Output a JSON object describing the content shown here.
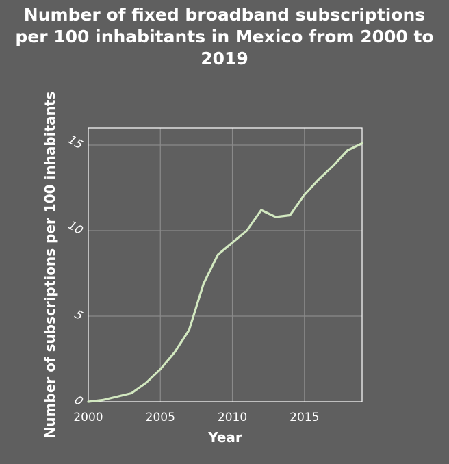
{
  "chart_data": {
    "type": "line",
    "title_lines": [
      "Number of fixed broadband subscriptions",
      "per 100 inhabitants in Mexico from 2000 to",
      "2019"
    ],
    "xlabel": "Year",
    "ylabel": "Number of subscriptions per 100 inhabitants",
    "x": [
      2000,
      2001,
      2002,
      2003,
      2004,
      2005,
      2006,
      2007,
      2008,
      2009,
      2010,
      2011,
      2012,
      2013,
      2014,
      2015,
      2016,
      2017,
      2018,
      2019
    ],
    "series": [
      {
        "values": [
          0.0,
          0.1,
          0.3,
          0.5,
          1.1,
          1.9,
          2.9,
          4.2,
          6.9,
          8.6,
          9.3,
          10.0,
          11.2,
          10.8,
          10.9,
          12.1,
          13.0,
          13.8,
          14.7,
          15.1
        ]
      }
    ],
    "xlim": [
      2000,
      2019
    ],
    "ylim": [
      0,
      16
    ],
    "xticks": [
      2000,
      2005,
      2010,
      2015
    ],
    "xtick_labels": [
      "2000",
      "2005",
      "2010",
      "2015"
    ],
    "yticks": [
      0,
      5,
      10,
      15
    ],
    "ytick_labels": [
      "0",
      "5",
      "10",
      "15"
    ],
    "grid": true,
    "colors": {
      "background": "#5f5f5f",
      "line": "#d2e8c0",
      "grid": "#8a8a8a",
      "text": "#ffffff"
    }
  }
}
